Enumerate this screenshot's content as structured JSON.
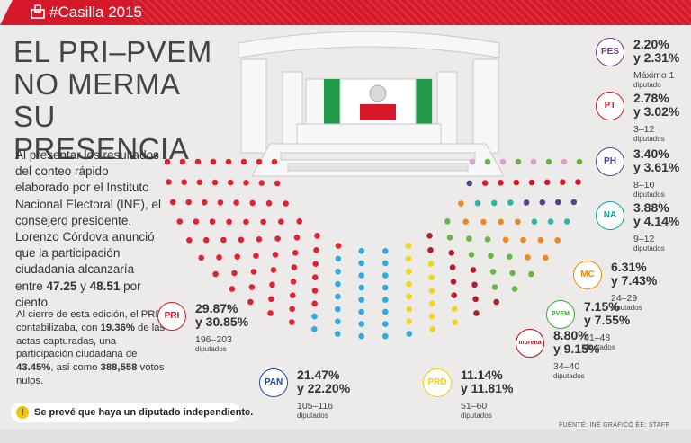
{
  "header": {
    "tag": "#Casilla 2015"
  },
  "headline": [
    "EL PRI–PVEM",
    "NO MERMA",
    "SU PRESENCIA"
  ],
  "intro": {
    "text": "Al presentar los resultados del conteo rápido elaborado por el Instituto Nacional Electoral (INE), el consejero presidente, Lorenzo Córdova anunció que la participación ciudadanía alcanzaría entre",
    "range_low": "47.25",
    "range_sep": " y ",
    "range_high": "48.51",
    "range_tail": " por ciento."
  },
  "prep": {
    "p1": "Al cierre de esta edición, el PREP contabilizaba, con ",
    "v1": "19.36%",
    "p2": " de las actas capturadas, una participación ciudadana de ",
    "v2": "43.45%",
    "p3": ", así como ",
    "v3": "388,558",
    "p4": " votos nulos."
  },
  "note": "Se prevé que haya un diputado independiente.",
  "source": "FUENTE: INE GRÁFICO EE: STAFF",
  "parties": [
    {
      "id": "pri",
      "pct1": "29.87%",
      "pct2": "y 30.85%",
      "seats": "196–203",
      "unit": "diputados",
      "logo": "PRI",
      "color": "#d7182a"
    },
    {
      "id": "pan",
      "pct1": "21.47%",
      "pct2": "y 22.20%",
      "seats": "105–116",
      "unit": "diputados",
      "logo": "PAN",
      "color": "#1a4aa0"
    },
    {
      "id": "prd",
      "pct1": "11.14%",
      "pct2": "y 11.81%",
      "seats": "51–60",
      "unit": "diputados",
      "logo": "PRD",
      "color": "#f4d000"
    },
    {
      "id": "morena",
      "pct1": "8.80%",
      "pct2": "y 9.15%",
      "seats": "34–40",
      "unit": "diputados",
      "logo": "morena",
      "color": "#b5121b"
    },
    {
      "id": "pvem",
      "pct1": "7.15%",
      "pct2": "y 7.55%",
      "seats": "41–48",
      "unit": "diputados",
      "logo": "PVEM",
      "color": "#3fa535"
    },
    {
      "id": "mc",
      "pct1": "6.31%",
      "pct2": "y 7.43%",
      "seats": "24–29",
      "unit": "diputados",
      "logo": "MC",
      "color": "#f18a00"
    },
    {
      "id": "panal",
      "pct1": "3.88%",
      "pct2": "y 4.14%",
      "seats": "9–12",
      "unit": "diputados",
      "logo": "NA",
      "color": "#00a99d"
    },
    {
      "id": "ph",
      "pct1": "3.40%",
      "pct2": "y 3.61%",
      "seats": "8–10",
      "unit": "diputados",
      "logo": "PH",
      "color": "#5b3f94"
    },
    {
      "id": "pt",
      "pct1": "2.78%",
      "pct2": "y 3.02%",
      "seats": "3–12",
      "unit": "diputados",
      "logo": "PT",
      "color": "#d7182a"
    },
    {
      "id": "pes",
      "pct1": "2.20%",
      "pct2": "y 2.31%",
      "seats": "Máximo 1",
      "unit": "diputado",
      "logo": "PES",
      "color": "#7a3c91"
    }
  ],
  "seat_colors": {
    "pri": "#e2232e",
    "pan": "#30a8e0",
    "prd": "#f5d31a",
    "morena": "#b21f2a",
    "pvem": "#68b745",
    "mc": "#f0861f",
    "panal": "#2cb4a4",
    "ph": "#5a3f93",
    "pt": "#d7182a",
    "pes": "#d8a1d2"
  }
}
